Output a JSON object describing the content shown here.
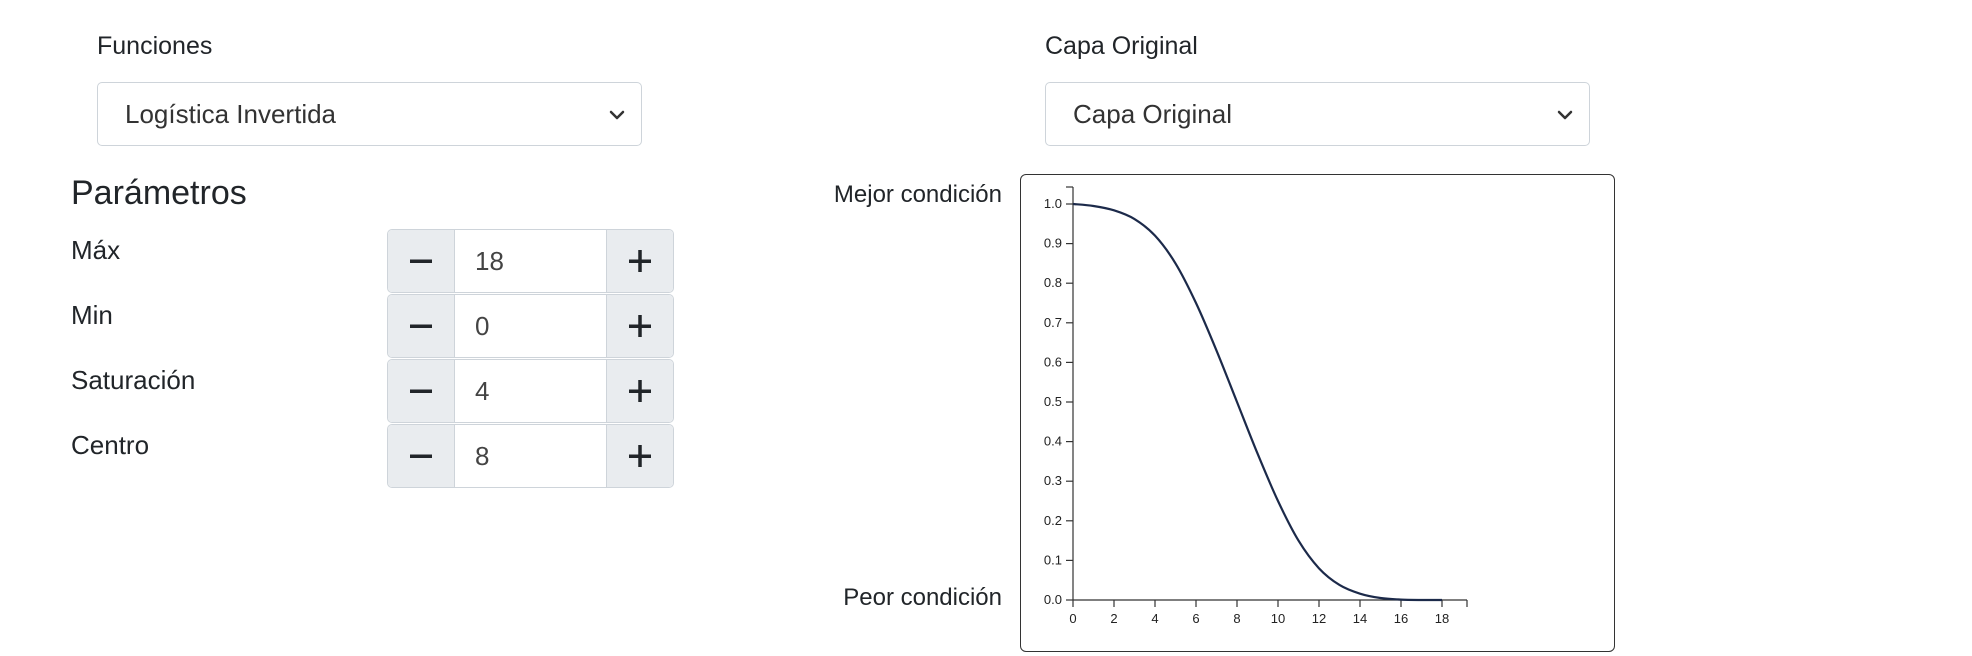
{
  "functions": {
    "label": "Funciones",
    "selected": "Logística Invertida"
  },
  "layer": {
    "label": "Capa Original",
    "selected": "Capa Original"
  },
  "params": {
    "title": "Parámetros",
    "items": [
      {
        "label": "Máx",
        "value": "18"
      },
      {
        "label": "Min",
        "value": "0"
      },
      {
        "label": "Saturación",
        "value": "4"
      },
      {
        "label": "Centro",
        "value": "8"
      }
    ]
  },
  "chart_labels": {
    "best": "Mejor condición",
    "worst": "Peor condición"
  },
  "colors": {
    "curve": "#1c2a4a",
    "button_bg": "#e9ecef",
    "border": "#ced4da"
  },
  "chart_data": {
    "type": "line",
    "title": "",
    "xlabel": "",
    "ylabel": "",
    "xlim": [
      0,
      18
    ],
    "ylim": [
      0,
      1
    ],
    "xticks": [
      "0",
      "2",
      "4",
      "6",
      "8",
      "10",
      "12",
      "14",
      "16",
      "18"
    ],
    "yticks": [
      "0.0",
      "0.1",
      "0.2",
      "0.3",
      "0.4",
      "0.5",
      "0.6",
      "0.7",
      "0.8",
      "0.9",
      "1.0"
    ],
    "grid": false,
    "series": [
      {
        "x": [
          0,
          1,
          2,
          3,
          4,
          5,
          6,
          7,
          8,
          9,
          10,
          11,
          12,
          13,
          14,
          15,
          16,
          17,
          18
        ],
        "y": [
          1.0,
          0.995,
          0.984,
          0.962,
          0.92,
          0.85,
          0.75,
          0.63,
          0.5,
          0.37,
          0.25,
          0.15,
          0.08,
          0.038,
          0.016,
          0.005,
          0.001,
          0.0,
          0.0
        ]
      }
    ]
  }
}
